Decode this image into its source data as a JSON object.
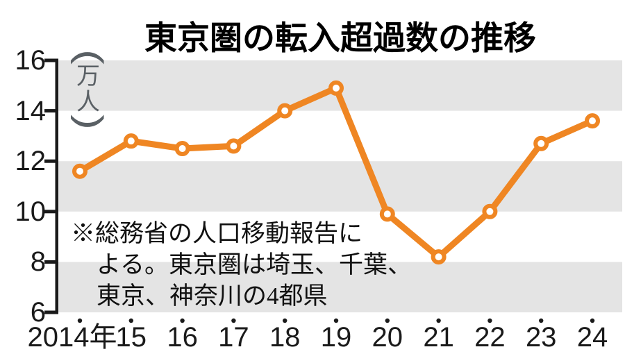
{
  "title": "東京圏の転入超過数の推移",
  "y_unit": {
    "open_paren": "(",
    "chars": [
      "万",
      "人"
    ],
    "close_paren": ")",
    "label": "万人"
  },
  "annotation": {
    "lines": [
      "※総務省の人口移動報告に",
      "よる。東京圏は埼玉、千葉、",
      "東京、神奈川の4都県"
    ]
  },
  "chart_data": {
    "type": "line",
    "title": "東京圏の転入超過数の推移",
    "x_tick_labels": [
      "2014年",
      "15",
      "16",
      "17",
      "18",
      "19",
      "20",
      "21",
      "22",
      "23",
      "24"
    ],
    "years": [
      2014,
      2015,
      2016,
      2017,
      2018,
      2019,
      2020,
      2021,
      2022,
      2023,
      2024
    ],
    "values": [
      11.6,
      12.8,
      12.5,
      12.6,
      14.0,
      14.9,
      9.9,
      8.2,
      10.0,
      12.7,
      13.6
    ],
    "xlabel": "",
    "ylabel": "万人",
    "ylim": [
      6,
      16
    ],
    "y_ticks": [
      16,
      14,
      12,
      10,
      8,
      6
    ],
    "bands": [
      [
        14,
        16
      ],
      [
        10,
        12
      ],
      [
        6,
        8
      ]
    ],
    "legend": "none",
    "grid": "alternating-horizontal-bands"
  },
  "colors": {
    "line": "#ef8623",
    "marker_fill": "#ffffff",
    "band": "#e4e4e4",
    "axis": "#1a1a1a",
    "text": "#111111",
    "unit_text": "#5a6065",
    "background": "#ffffff"
  }
}
